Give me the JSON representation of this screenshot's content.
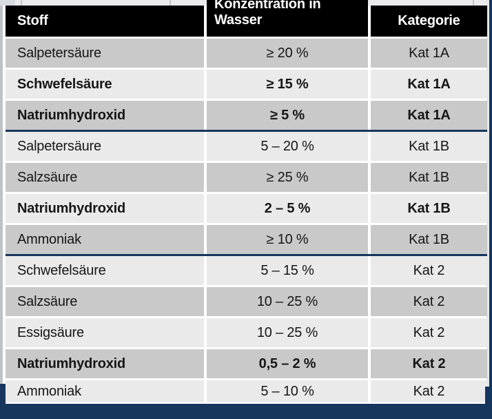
{
  "table": {
    "columns": [
      {
        "label": "Stoff"
      },
      {
        "label": "Konzentration in Wasser"
      },
      {
        "label": "Kategorie"
      }
    ],
    "rows": [
      {
        "stoff": "Salpetersäure",
        "konzentration": "≥ 20 %",
        "kategorie": "Kat 1A",
        "bold": false,
        "shade": "dark",
        "section_end": false
      },
      {
        "stoff": "Schwefelsäure",
        "konzentration": "≥ 15 %",
        "kategorie": "Kat 1A",
        "bold": true,
        "shade": "light",
        "section_end": false
      },
      {
        "stoff": "Natriumhydroxid",
        "konzentration": "≥ 5 %",
        "kategorie": "Kat 1A",
        "bold": true,
        "shade": "dark",
        "section_end": true
      },
      {
        "stoff": "Salpetersäure",
        "konzentration": "5 – 20 %",
        "kategorie": "Kat 1B",
        "bold": false,
        "shade": "light",
        "section_end": false
      },
      {
        "stoff": "Salzsäure",
        "konzentration": "≥ 25 %",
        "kategorie": "Kat 1B",
        "bold": false,
        "shade": "dark",
        "section_end": false
      },
      {
        "stoff": "Natriumhydroxid",
        "konzentration": "2 – 5 %",
        "kategorie": "Kat 1B",
        "bold": true,
        "shade": "light",
        "section_end": false
      },
      {
        "stoff": "Ammoniak",
        "konzentration": "≥ 10 %",
        "kategorie": "Kat 1B",
        "bold": false,
        "shade": "dark",
        "section_end": true
      },
      {
        "stoff": "Schwefelsäure",
        "konzentration": "5 – 15 %",
        "kategorie": "Kat 2",
        "bold": false,
        "shade": "light",
        "section_end": false
      },
      {
        "stoff": "Salzsäure",
        "konzentration": "10 – 25 %",
        "kategorie": "Kat 2",
        "bold": false,
        "shade": "dark",
        "section_end": false
      },
      {
        "stoff": "Essigsäure",
        "konzentration": "10 – 25 %",
        "kategorie": "Kat 2",
        "bold": false,
        "shade": "light",
        "section_end": false
      },
      {
        "stoff": "Natriumhydroxid",
        "konzentration": "0,5 – 2 %",
        "kategorie": "Kat 2",
        "bold": true,
        "shade": "dark",
        "section_end": false
      },
      {
        "stoff": "Ammoniak",
        "konzentration": "5 – 10 %",
        "kategorie": "Kat 2",
        "bold": false,
        "shade": "light",
        "section_end": false
      }
    ]
  },
  "colors": {
    "header_bg": "#000000",
    "header_text": "#ffffff",
    "row_dark": "#c9c9c9",
    "row_light": "#eaeaea",
    "section_divider": "#17365d",
    "footer_bar": "#17365d",
    "body_text": "#161616"
  }
}
